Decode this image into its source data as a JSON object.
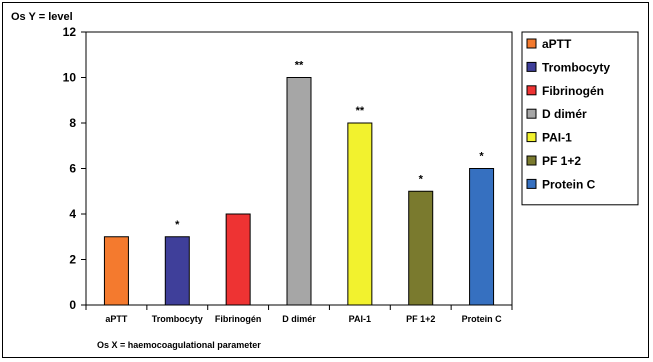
{
  "chart_data": {
    "type": "bar",
    "title": "",
    "ylabel": "Os Y = level",
    "xlabel": "Os X = haemocoagulational parameter",
    "ylim": [
      0,
      12
    ],
    "yticks": [
      0,
      2,
      4,
      6,
      8,
      10,
      12
    ],
    "grid": false,
    "legend_position": "right",
    "categories": [
      "aPTT",
      "Trombocyty",
      "Fibrinogén",
      "D dimér",
      "PAI-1",
      "PF 1+2",
      "Protein C"
    ],
    "values": [
      3,
      3,
      4,
      10,
      8,
      5,
      6
    ],
    "annotations": [
      "",
      "*",
      "",
      "**",
      "**",
      "*",
      "*"
    ],
    "colors": [
      "#f47a2e",
      "#3f3f9a",
      "#ee3333",
      "#a6a6a6",
      "#f2f22e",
      "#7a7a2e",
      "#3670c0"
    ],
    "legend": [
      "aPTT",
      "Trombocyty",
      "Fibrinogén",
      "D dimér",
      "PAI-1",
      "PF 1+2",
      "Protein C"
    ]
  }
}
